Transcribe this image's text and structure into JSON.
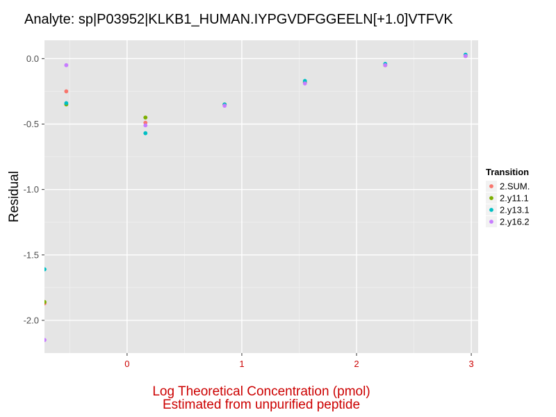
{
  "chart_data": {
    "type": "scatter",
    "title": "Analyte: sp|P03952|KLKB1_HUMAN.IYPGVDFGGEELN[+1.0]VTFVK",
    "xlabel_lines": [
      "Log Theoretical Concentration (pmol)",
      "Estimated from unpurified peptide"
    ],
    "ylabel": "Residual",
    "xlim": [
      -0.72,
      3.06
    ],
    "ylim": [
      -2.25,
      0.14
    ],
    "x_ticks": [
      0,
      1,
      2,
      3
    ],
    "x_tick_labels": [
      "0",
      "1",
      "2",
      "3"
    ],
    "y_ticks": [
      0,
      -0.5,
      -1,
      -1.5,
      -2
    ],
    "y_tick_labels": [
      "0.0",
      "-0.5",
      "-1.0",
      "-1.5",
      "-2.0"
    ],
    "grid": true,
    "legend": {
      "title": "Transition",
      "position": "right"
    },
    "series": [
      {
        "name": "2.SUM.",
        "color": "#F8766D",
        "points": [
          [
            -0.72,
            -1.87
          ],
          [
            -0.53,
            -0.25
          ],
          [
            0.16,
            -0.49
          ],
          [
            0.85,
            -0.35
          ],
          [
            1.55,
            -0.18
          ],
          [
            2.25,
            -0.05
          ],
          [
            2.95,
            0.02
          ]
        ]
      },
      {
        "name": "2.y11.1",
        "color": "#7CAE00",
        "points": [
          [
            -0.72,
            -1.86
          ],
          [
            -0.53,
            -0.35
          ],
          [
            0.16,
            -0.45
          ],
          [
            0.85,
            -0.35
          ],
          [
            1.55,
            -0.18
          ],
          [
            2.25,
            -0.05
          ],
          [
            2.95,
            0.02
          ]
        ]
      },
      {
        "name": "2.y13.1",
        "color": "#00BFC4",
        "points": [
          [
            -0.72,
            -1.61
          ],
          [
            -0.53,
            -0.34
          ],
          [
            0.16,
            -0.57
          ],
          [
            0.85,
            -0.35
          ],
          [
            1.55,
            -0.17
          ],
          [
            2.25,
            -0.04
          ],
          [
            2.95,
            0.03
          ]
        ]
      },
      {
        "name": "2.y16.2",
        "color": "#C77CFF",
        "points": [
          [
            -0.72,
            -2.15
          ],
          [
            -0.53,
            -0.05
          ],
          [
            0.16,
            -0.51
          ],
          [
            0.85,
            -0.36
          ],
          [
            1.55,
            -0.19
          ],
          [
            2.25,
            -0.05
          ],
          [
            2.95,
            0.02
          ]
        ]
      }
    ]
  }
}
